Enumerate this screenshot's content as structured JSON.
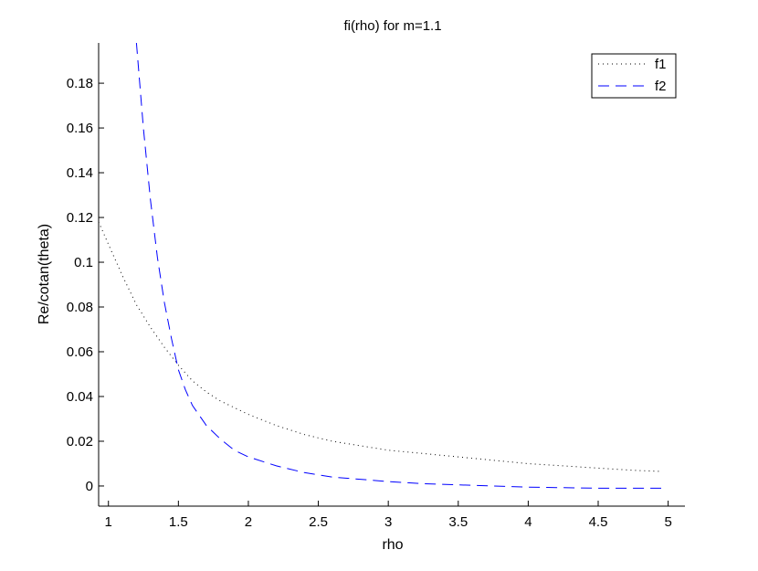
{
  "chart_data": {
    "type": "line",
    "title": "fi(rho) for m=1.1",
    "xlabel": "rho",
    "ylabel": "Re/cotan(theta)",
    "xlim": [
      0.93,
      5.12
    ],
    "ylim": [
      -0.009,
      0.198
    ],
    "xticks": [
      1,
      1.5,
      2,
      2.5,
      3,
      3.5,
      4,
      4.5,
      5
    ],
    "xtick_labels": [
      "1",
      "1.5",
      "2",
      "2.5",
      "3",
      "3.5",
      "4",
      "4.5",
      "5"
    ],
    "yticks": [
      0,
      0.02,
      0.04,
      0.06,
      0.08,
      0.1,
      0.12,
      0.14,
      0.16,
      0.18
    ],
    "ytick_labels": [
      "0",
      "0.02",
      "0.04",
      "0.06",
      "0.08",
      "0.1",
      "0.12",
      "0.14",
      "0.16",
      "0.18"
    ],
    "grid": false,
    "legend_position": "top-right",
    "series": [
      {
        "name": "f1",
        "style": "dotted",
        "color": "#000000",
        "x": [
          0.93,
          1.0,
          1.1,
          1.2,
          1.3,
          1.4,
          1.5,
          1.6,
          1.7,
          1.8,
          1.9,
          2.0,
          2.2,
          2.4,
          2.6,
          2.8,
          3.0,
          3.25,
          3.5,
          3.75,
          4.0,
          4.25,
          4.5,
          4.75,
          4.95
        ],
        "y": [
          0.118,
          0.108,
          0.094,
          0.081,
          0.071,
          0.062,
          0.054,
          0.047,
          0.042,
          0.038,
          0.035,
          0.032,
          0.027,
          0.023,
          0.02,
          0.018,
          0.016,
          0.0145,
          0.013,
          0.0115,
          0.01,
          0.009,
          0.008,
          0.007,
          0.0065
        ]
      },
      {
        "name": "f2",
        "style": "dashed",
        "color": "#0000ff",
        "x": [
          1.2,
          1.25,
          1.3,
          1.35,
          1.4,
          1.45,
          1.5,
          1.55,
          1.6,
          1.7,
          1.8,
          1.9,
          2.0,
          2.2,
          2.4,
          2.6,
          2.8,
          3.0,
          3.25,
          3.5,
          3.75,
          4.0,
          4.5,
          4.95
        ],
        "y": [
          0.198,
          0.16,
          0.128,
          0.102,
          0.082,
          0.066,
          0.052,
          0.043,
          0.036,
          0.027,
          0.021,
          0.016,
          0.013,
          0.009,
          0.006,
          0.004,
          0.003,
          0.002,
          0.001,
          0.0005,
          0.0,
          -0.0005,
          -0.001,
          -0.001
        ]
      }
    ]
  }
}
